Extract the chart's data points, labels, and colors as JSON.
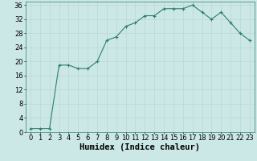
{
  "xlabel": "Humidex (Indice chaleur)",
  "x": [
    0,
    1,
    2,
    3,
    4,
    5,
    6,
    7,
    8,
    9,
    10,
    11,
    12,
    13,
    14,
    15,
    16,
    17,
    18,
    19,
    20,
    21,
    22,
    23
  ],
  "y": [
    1,
    1,
    1,
    19,
    19,
    18,
    18,
    20,
    26,
    27,
    30,
    31,
    33,
    33,
    35,
    35,
    35,
    36,
    34,
    32,
    34,
    31,
    28,
    26
  ],
  "line_color": "#2e7d6e",
  "marker": "+",
  "marker_color": "#2e7d6e",
  "bg_color": "#cce8e6",
  "grid_color": "#b8d8d6",
  "ylim": [
    0,
    37
  ],
  "yticks": [
    0,
    4,
    8,
    12,
    16,
    20,
    24,
    28,
    32,
    36
  ],
  "xlim": [
    -0.5,
    23.5
  ],
  "xticks": [
    0,
    1,
    2,
    3,
    4,
    5,
    6,
    7,
    8,
    9,
    10,
    11,
    12,
    13,
    14,
    15,
    16,
    17,
    18,
    19,
    20,
    21,
    22,
    23
  ],
  "tick_fontsize": 6,
  "label_fontsize": 7.5
}
